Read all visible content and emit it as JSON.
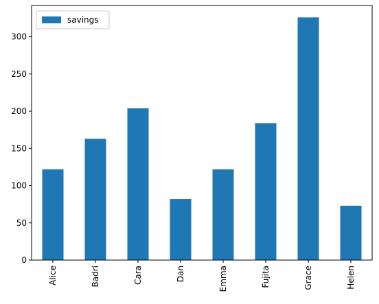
{
  "chart_data": {
    "type": "bar",
    "title": "",
    "xlabel": "",
    "ylabel": "",
    "categories": [
      "Alice",
      "Badri",
      "Cara",
      "Dan",
      "Emma",
      "Fujita",
      "Grace",
      "Helen"
    ],
    "series": [
      {
        "name": "savings",
        "values": [
          122,
          163,
          204,
          82,
          122,
          184,
          326,
          73
        ],
        "color": "#1f77b4"
      }
    ],
    "ylim": [
      0,
      342
    ],
    "yticks": [
      0,
      50,
      100,
      150,
      200,
      250,
      300
    ],
    "grid": false,
    "legend": {
      "position": "top-left",
      "entries": [
        "savings"
      ]
    }
  }
}
